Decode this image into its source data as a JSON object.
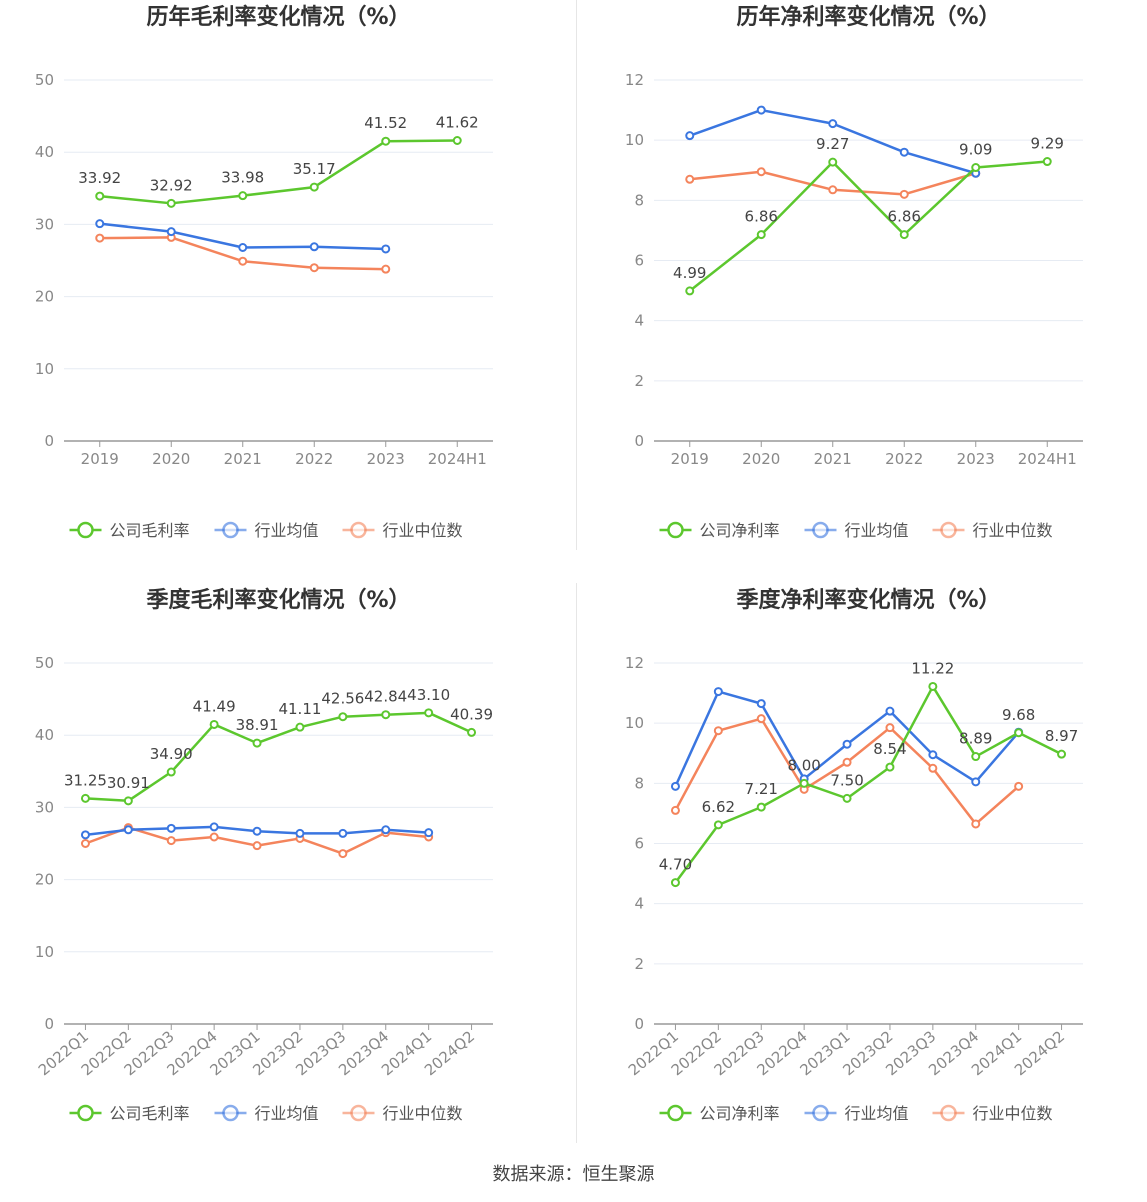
{
  "source_label": "数据来源：恒生聚源",
  "colors": {
    "company": "#5cc72e",
    "industry_avg": "#3a76e0",
    "industry_median": "#f4845c",
    "grid": "#e6ebf3",
    "axis": "#999999",
    "tick": "#888888",
    "label": "#444444",
    "title": "#333333"
  },
  "chart_data": [
    {
      "type": "line",
      "title": "历年毛利率变化情况（%）",
      "categories": [
        "2019",
        "2020",
        "2021",
        "2022",
        "2023",
        "2024H1"
      ],
      "ylim": [
        0,
        50
      ],
      "yticks": [
        0,
        10,
        20,
        30,
        40,
        50
      ],
      "grid": true,
      "legend_position": "bottom",
      "rotate_x_labels": false,
      "series": [
        {
          "name": "公司毛利率",
          "key": "company",
          "values": [
            33.92,
            32.92,
            33.98,
            35.17,
            41.52,
            41.62
          ],
          "labels": [
            "33.92",
            "32.92",
            "33.98",
            "35.17",
            "41.52",
            "41.62"
          ]
        },
        {
          "name": "行业均值",
          "key": "industry_avg",
          "values": [
            30.1,
            29.0,
            26.8,
            26.9,
            26.6,
            null
          ]
        },
        {
          "name": "行业中位数",
          "key": "industry_median",
          "values": [
            28.1,
            28.2,
            24.9,
            24.0,
            23.8,
            null
          ]
        }
      ]
    },
    {
      "type": "line",
      "title": "历年净利率变化情况（%）",
      "categories": [
        "2019",
        "2020",
        "2021",
        "2022",
        "2023",
        "2024H1"
      ],
      "ylim": [
        0,
        12
      ],
      "yticks": [
        0,
        2,
        4,
        6,
        8,
        10,
        12
      ],
      "grid": true,
      "legend_position": "bottom",
      "rotate_x_labels": false,
      "series": [
        {
          "name": "公司净利率",
          "key": "company",
          "values": [
            4.99,
            6.86,
            9.27,
            6.86,
            9.09,
            9.29
          ],
          "labels": [
            "4.99",
            "6.86",
            "9.27",
            "6.86",
            "9.09",
            "9.29"
          ]
        },
        {
          "name": "行业均值",
          "key": "industry_avg",
          "values": [
            10.15,
            11.0,
            10.55,
            9.6,
            8.9,
            null
          ]
        },
        {
          "name": "行业中位数",
          "key": "industry_median",
          "values": [
            8.7,
            8.95,
            8.35,
            8.2,
            8.9,
            null
          ]
        }
      ]
    },
    {
      "type": "line",
      "title": "季度毛利率变化情况（%）",
      "categories": [
        "2022Q1",
        "2022Q2",
        "2022Q3",
        "2022Q4",
        "2023Q1",
        "2023Q2",
        "2023Q3",
        "2023Q4",
        "2024Q1",
        "2024Q2"
      ],
      "ylim": [
        0,
        50
      ],
      "yticks": [
        0,
        10,
        20,
        30,
        40,
        50
      ],
      "grid": true,
      "legend_position": "bottom",
      "rotate_x_labels": true,
      "series": [
        {
          "name": "公司毛利率",
          "key": "company",
          "values": [
            31.25,
            30.91,
            34.9,
            41.49,
            38.91,
            41.11,
            42.56,
            42.84,
            43.1,
            40.39
          ],
          "labels": [
            "31.25",
            "30.91",
            "34.90",
            "41.49",
            "38.91",
            "41.11",
            "42.56",
            "42.84",
            "43.10",
            "40.39"
          ]
        },
        {
          "name": "行业均值",
          "key": "industry_avg",
          "values": [
            26.2,
            26.9,
            27.1,
            27.3,
            26.7,
            26.4,
            26.4,
            26.9,
            26.5,
            null
          ]
        },
        {
          "name": "行业中位数",
          "key": "industry_median",
          "values": [
            25.0,
            27.2,
            25.4,
            25.9,
            24.7,
            25.7,
            23.6,
            26.5,
            25.9,
            null
          ]
        }
      ]
    },
    {
      "type": "line",
      "title": "季度净利率变化情况（%）",
      "categories": [
        "2022Q1",
        "2022Q2",
        "2022Q3",
        "2022Q4",
        "2023Q1",
        "2023Q2",
        "2023Q3",
        "2023Q4",
        "2024Q1",
        "2024Q2"
      ],
      "ylim": [
        0,
        12
      ],
      "yticks": [
        0,
        2,
        4,
        6,
        8,
        10,
        12
      ],
      "grid": true,
      "legend_position": "bottom",
      "rotate_x_labels": true,
      "series": [
        {
          "name": "公司净利率",
          "key": "company",
          "values": [
            4.7,
            6.62,
            7.21,
            8.0,
            7.5,
            8.54,
            11.22,
            8.89,
            9.68,
            8.97
          ],
          "labels": [
            "4.70",
            "6.62",
            "7.21",
            "8.00",
            "7.50",
            "8.54",
            "11.22",
            "8.89",
            "9.68",
            "8.97"
          ]
        },
        {
          "name": "行业均值",
          "key": "industry_avg",
          "values": [
            7.9,
            11.05,
            10.65,
            8.15,
            9.3,
            10.4,
            8.95,
            8.05,
            9.7,
            null
          ]
        },
        {
          "name": "行业中位数",
          "key": "industry_median",
          "values": [
            7.1,
            9.75,
            10.15,
            7.8,
            8.7,
            9.85,
            8.5,
            6.65,
            7.9,
            null
          ]
        }
      ]
    }
  ]
}
